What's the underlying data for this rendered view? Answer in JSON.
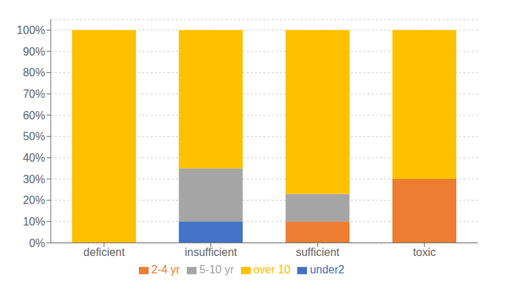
{
  "chart_data": {
    "type": "bar",
    "stacked": true,
    "categories": [
      "deficient",
      "insufficient",
      "sufficient",
      "toxic"
    ],
    "series": [
      {
        "name": "under2",
        "color": "#4472C4",
        "values": [
          0,
          10,
          0,
          0
        ]
      },
      {
        "name": "2-4 yr",
        "color": "#ED7D31",
        "values": [
          0,
          0,
          10,
          30
        ]
      },
      {
        "name": "5-10 yr",
        "color": "#A5A5A5",
        "values": [
          0,
          25,
          13,
          0
        ]
      },
      {
        "name": "over 10",
        "color": "#FFC000",
        "values": [
          100,
          65,
          77,
          70
        ]
      }
    ],
    "ylim": [
      0,
      105
    ],
    "yticks": [
      {
        "value": 0,
        "label": "0%"
      },
      {
        "value": 10,
        "label": "10%"
      },
      {
        "value": 20,
        "label": "20%"
      },
      {
        "value": 30,
        "label": "30%"
      },
      {
        "value": 40,
        "label": "40%"
      },
      {
        "value": 50,
        "label": "50%"
      },
      {
        "value": 60,
        "label": "60%"
      },
      {
        "value": 70,
        "label": "70%"
      },
      {
        "value": 80,
        "label": "80%"
      },
      {
        "value": 90,
        "label": "90%"
      },
      {
        "value": 100,
        "label": "100%"
      }
    ],
    "grid": true,
    "legend": "bottom"
  }
}
